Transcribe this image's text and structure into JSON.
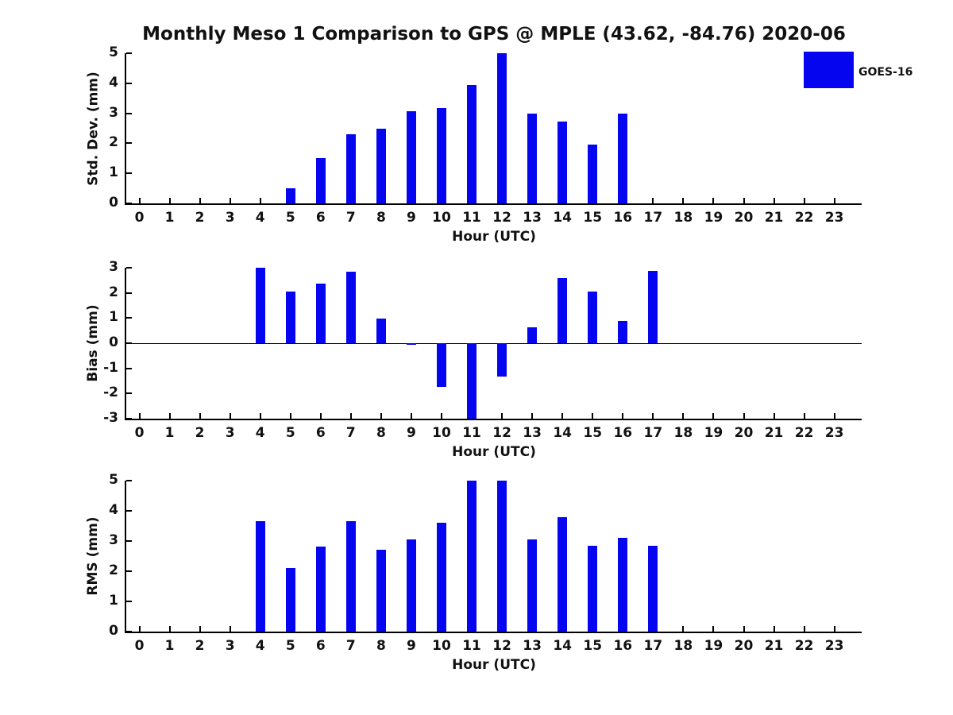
{
  "title": "Monthly Meso 1 Comparison to GPS @ MPLE (43.62, -84.76) 2020-06",
  "legend": {
    "label": "GOES-16"
  },
  "colors": {
    "bar": "#0505f0",
    "axis": "#000000",
    "text": "#111111",
    "background": "#ffffff"
  },
  "chart_data": [
    {
      "type": "bar",
      "key": "std-dev",
      "ylabel": "Std. Dev. (mm)",
      "xlabel": "Hour (UTC)",
      "categories": [
        "0",
        "1",
        "2",
        "3",
        "4",
        "5",
        "6",
        "7",
        "8",
        "9",
        "10",
        "11",
        "12",
        "13",
        "14",
        "15",
        "16",
        "17",
        "18",
        "19",
        "20",
        "21",
        "22",
        "23"
      ],
      "series": [
        {
          "name": "GOES-16",
          "values": [
            0,
            0,
            0,
            0,
            0,
            0.5,
            1.5,
            2.3,
            2.5,
            3.08,
            3.18,
            3.95,
            5,
            3,
            2.73,
            1.97,
            2.98,
            0,
            0,
            0,
            0,
            0,
            0,
            0
          ]
        }
      ],
      "ylim": [
        0,
        5
      ],
      "yticks": [
        0,
        1,
        2,
        3,
        4,
        5
      ],
      "grid": false,
      "legend_position": "outside-upper-right"
    },
    {
      "type": "bar",
      "key": "bias",
      "ylabel": "Bias (mm)",
      "xlabel": "Hour (UTC)",
      "categories": [
        "0",
        "1",
        "2",
        "3",
        "4",
        "5",
        "6",
        "7",
        "8",
        "9",
        "10",
        "11",
        "12",
        "13",
        "14",
        "15",
        "16",
        "17",
        "18",
        "19",
        "20",
        "21",
        "22",
        "23"
      ],
      "series": [
        {
          "name": "GOES-16",
          "values": [
            0,
            0,
            0,
            0,
            3,
            2.05,
            2.37,
            2.84,
            0.97,
            -0.05,
            -1.75,
            -3,
            -1.33,
            0.62,
            2.6,
            2.05,
            0.9,
            2.86,
            0,
            0,
            0,
            0,
            0,
            0
          ]
        }
      ],
      "ylim": [
        -3,
        3
      ],
      "yticks": [
        -3,
        -2,
        -1,
        0,
        1,
        2,
        3
      ],
      "grid": false,
      "zero_line": true,
      "legend_position": "none"
    },
    {
      "type": "bar",
      "key": "rms",
      "ylabel": "RMS (mm)",
      "xlabel": "Hour (UTC)",
      "categories": [
        "0",
        "1",
        "2",
        "3",
        "4",
        "5",
        "6",
        "7",
        "8",
        "9",
        "10",
        "11",
        "12",
        "13",
        "14",
        "15",
        "16",
        "17",
        "18",
        "19",
        "20",
        "21",
        "22",
        "23"
      ],
      "series": [
        {
          "name": "GOES-16",
          "values": [
            0,
            0,
            0,
            0,
            3.65,
            2.1,
            2.82,
            3.65,
            2.7,
            3.05,
            3.6,
            5,
            5,
            3.05,
            3.8,
            2.84,
            3.1,
            2.84,
            0,
            0,
            0,
            0,
            0,
            0
          ]
        }
      ],
      "ylim": [
        0,
        5
      ],
      "yticks": [
        0,
        1,
        2,
        3,
        4,
        5
      ],
      "grid": false,
      "legend_position": "none"
    }
  ]
}
